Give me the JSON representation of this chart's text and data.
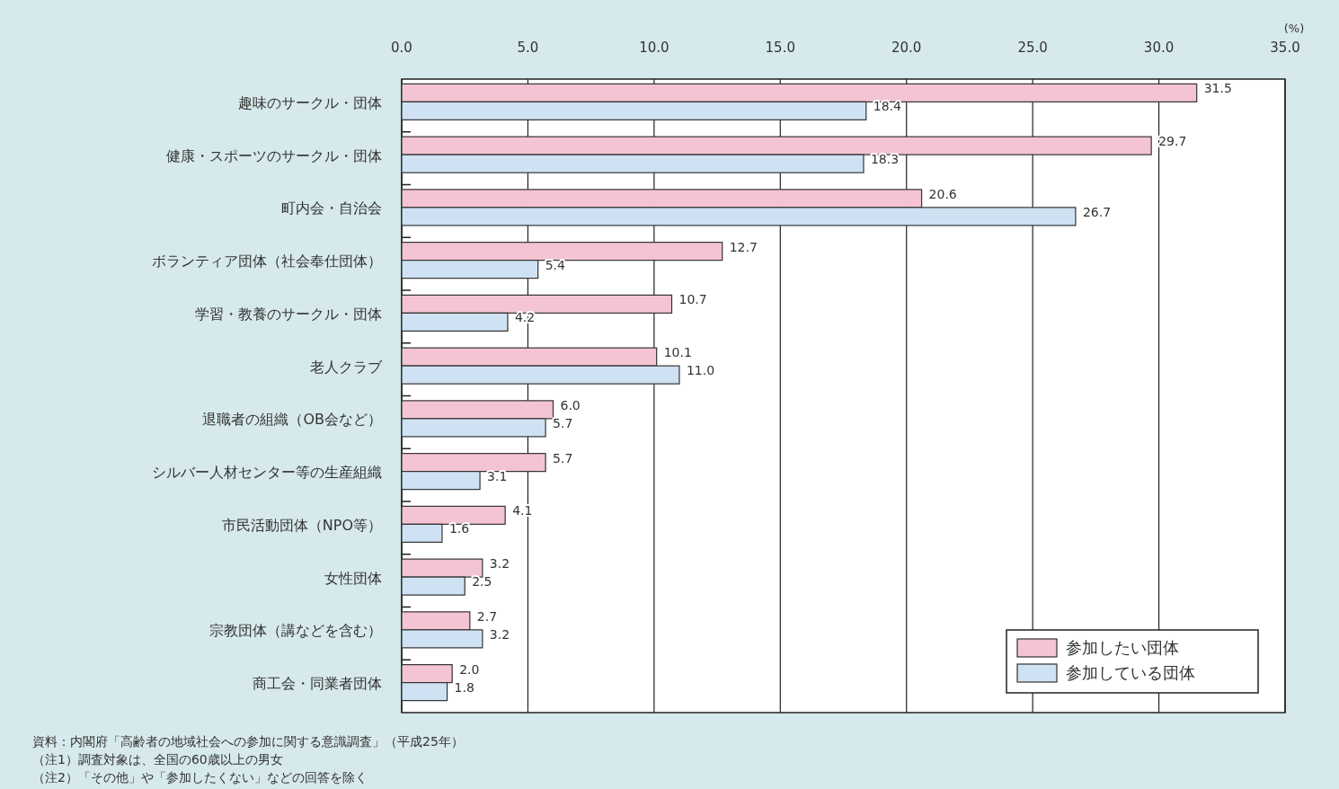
{
  "chart_data": {
    "type": "bar",
    "orientation": "horizontal",
    "xlabel": "(%)",
    "categories": [
      "趣味のサークル・団体",
      "健康・スポーツのサークル・団体",
      "町内会・自治会",
      "ボランティア団体（社会奉仕団体）",
      "学習・教養のサークル・団体",
      "老人クラブ",
      "退職者の組織（OB会など）",
      "シルバー人材センター等の生産組織",
      "市民活動団体（NPO等）",
      "女性団体",
      "宗教団体（講などを含む）",
      "商工会・同業者団体"
    ],
    "series": [
      {
        "name": "参加したい団体",
        "color": "#f4c4d2",
        "values": [
          31.5,
          29.7,
          20.6,
          12.7,
          10.7,
          10.1,
          6.0,
          5.7,
          4.1,
          3.2,
          2.7,
          2.0
        ],
        "value_labels": [
          "31.5",
          "29.7",
          "20.6",
          "12.7",
          "10.7",
          "10.1",
          "6.0",
          "5.7",
          "4.1",
          "3.2",
          "2.7",
          "2.0"
        ]
      },
      {
        "name": "参加している団体",
        "color": "#cfe2f3",
        "values": [
          18.4,
          18.3,
          26.7,
          5.4,
          4.2,
          11.0,
          5.7,
          3.1,
          1.6,
          2.5,
          3.2,
          1.8
        ],
        "value_labels": [
          "18.4",
          "18.3",
          "26.7",
          "5.4",
          "4.2",
          "11.0",
          "5.7",
          "3.1",
          "1.6",
          "2.5",
          "3.2",
          "1.8"
        ]
      }
    ],
    "xlim": [
      0,
      35
    ],
    "xticks": [
      {
        "value": 0,
        "label": "0.0"
      },
      {
        "value": 5,
        "label": "5.0"
      },
      {
        "value": 10,
        "label": "10.0"
      },
      {
        "value": 15,
        "label": "15.0"
      },
      {
        "value": 20,
        "label": "20.0"
      },
      {
        "value": 25,
        "label": "25.0"
      },
      {
        "value": 30,
        "label": "30.0"
      },
      {
        "value": 35,
        "label": "35.0"
      }
    ],
    "grid": "x",
    "legend": "bottom right",
    "annotations": [
      "資料：内閣府「高齢者の地域社会への参加に関する意識調査」（平成25年）",
      "（注1）調査対象は、全国の60歳以上の男女",
      "（注2）「その他」や「参加したくない」などの回答を除く"
    ]
  }
}
